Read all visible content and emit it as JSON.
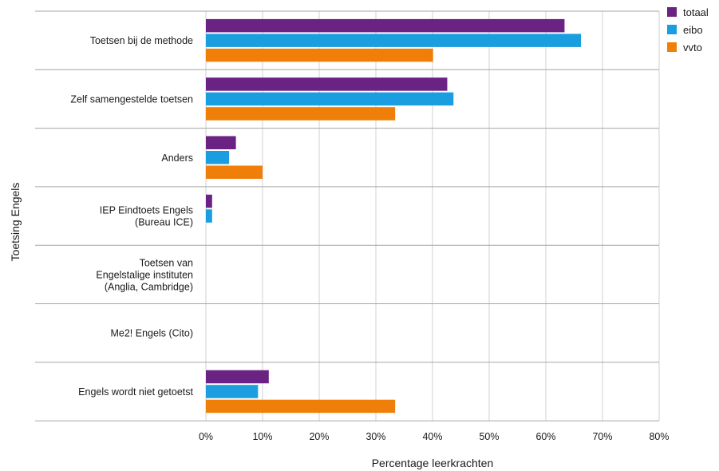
{
  "chart_data": {
    "type": "bar",
    "orientation": "horizontal",
    "xlabel": "Percentage leerkrachten",
    "ylabel": "Toetsing Engels",
    "xlim": [
      0,
      80
    ],
    "xticks": [
      "0%",
      "10%",
      "20%",
      "30%",
      "40%",
      "50%",
      "60%",
      "70%",
      "80%"
    ],
    "grid": true,
    "legend_position": "top-right",
    "categories": [
      [
        "Toetsen bij de methode"
      ],
      [
        "Zelf samengestelde toetsen"
      ],
      [
        "Anders"
      ],
      [
        "IEP Eindtoets Engels",
        "(Bureau ICE)"
      ],
      [
        "Toetsen van",
        "Engelstalige instituten",
        "(Anglia, Cambridge)"
      ],
      [
        "Me2! Engels (Cito)"
      ],
      [
        "Engels wordt niet getoetst"
      ]
    ],
    "series": [
      {
        "name": "totaal",
        "color": "#6a2383",
        "values": [
          63.3,
          42.6,
          5.3,
          1.1,
          0,
          0,
          11.1
        ]
      },
      {
        "name": "eibo",
        "color": "#1a9ee0",
        "values": [
          66.2,
          43.7,
          4.1,
          1.1,
          0,
          0,
          9.2
        ]
      },
      {
        "name": "vvto",
        "color": "#f07f09",
        "values": [
          40.1,
          33.4,
          10.0,
          0,
          0,
          0,
          33.4
        ]
      }
    ]
  }
}
